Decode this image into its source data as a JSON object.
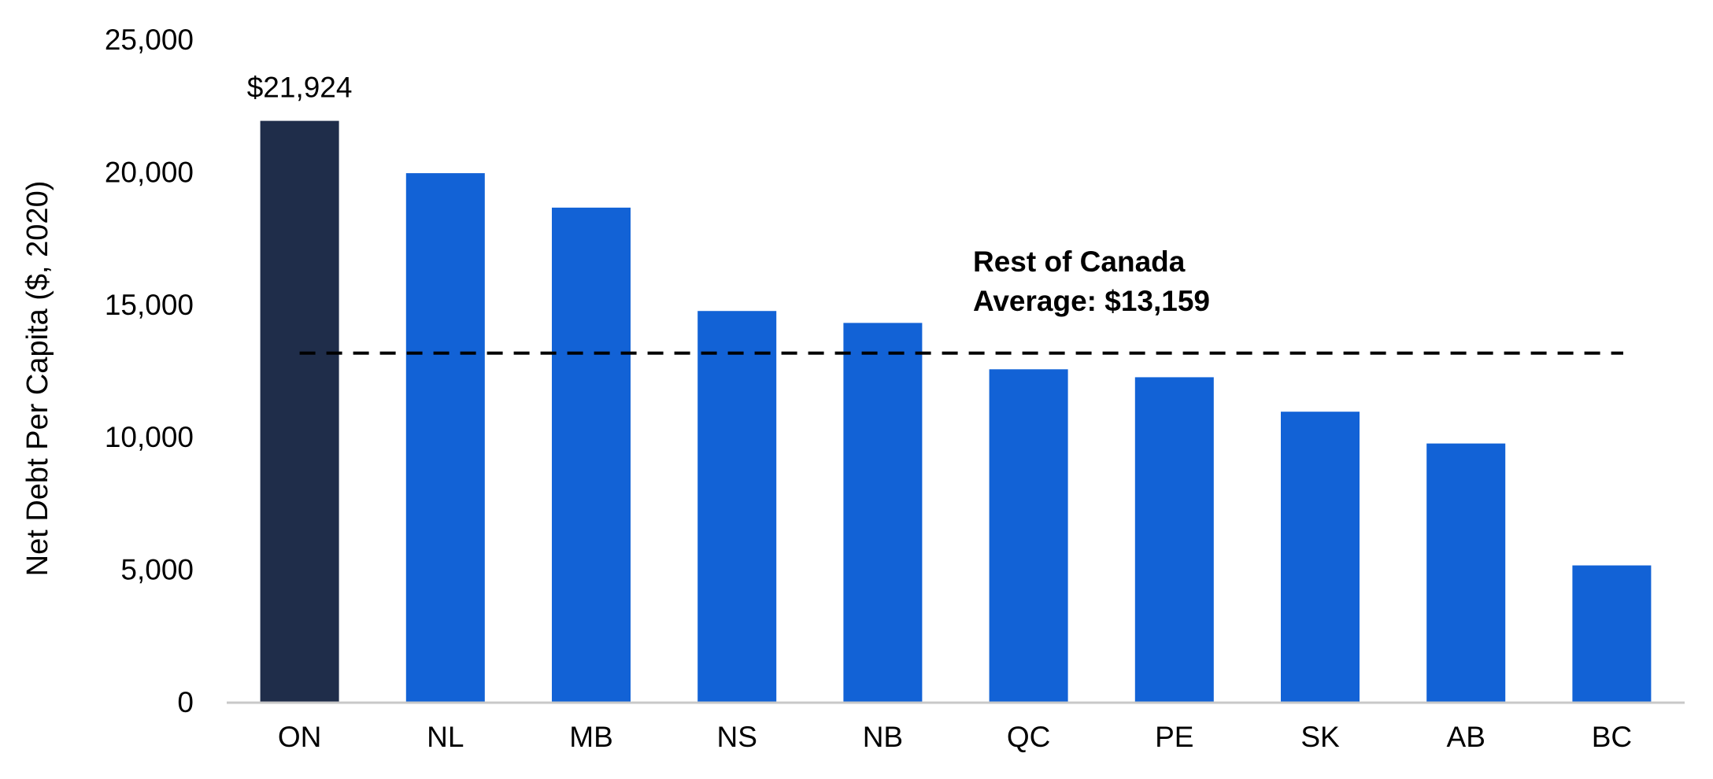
{
  "chart_data": {
    "type": "bar",
    "title": "",
    "xlabel": "",
    "ylabel": "Net Debt Per Capita ($, 2020)",
    "ylim": [
      0,
      25000
    ],
    "yticks": [
      0,
      5000,
      10000,
      15000,
      20000,
      25000
    ],
    "ytick_labels": [
      "0",
      "5,000",
      "10,000",
      "15,000",
      "20,000",
      "25,000"
    ],
    "categories": [
      "ON",
      "NL",
      "MB",
      "NS",
      "NB",
      "QC",
      "PE",
      "SK",
      "AB",
      "BC"
    ],
    "values": [
      21924,
      19950,
      18650,
      14750,
      14300,
      12550,
      12250,
      10950,
      9750,
      5150
    ],
    "highlight_category": "ON",
    "data_labels": [
      {
        "category": "ON",
        "text": "$21,924"
      }
    ],
    "reference_line": {
      "value": 13159,
      "style": "dashed",
      "label_lines": [
        "Rest of Canada",
        "Average: $13,159"
      ]
    },
    "grid": false,
    "legend": "none",
    "colors": {
      "highlight": "#1f2d4a",
      "bar": "#1262d6",
      "reference_line": "#000000",
      "axis": "#c8c8c8"
    }
  }
}
